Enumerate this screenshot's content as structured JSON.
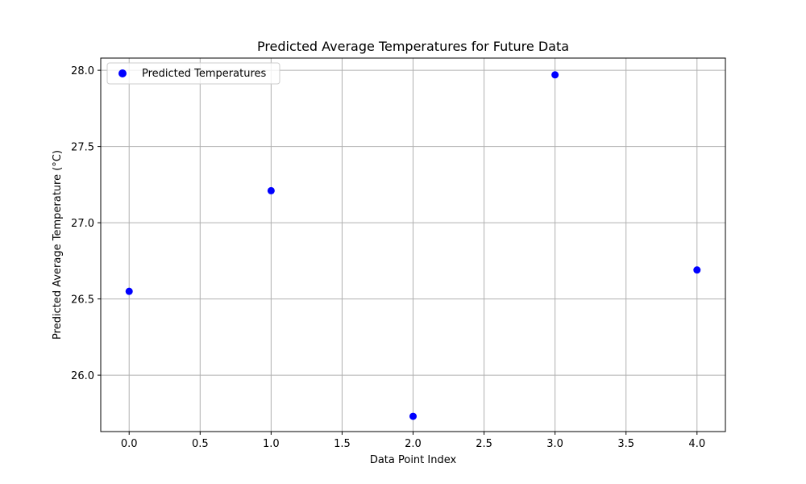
{
  "chart_data": {
    "type": "scatter",
    "title": "Predicted Average Temperatures for Future Data",
    "xlabel": "Data Point Index",
    "ylabel": "Predicted Average Temperature (°C)",
    "xlim": [
      -0.2,
      4.2
    ],
    "ylim": [
      25.63,
      28.08
    ],
    "xticks": [
      0.0,
      0.5,
      1.0,
      1.5,
      2.0,
      2.5,
      3.0,
      3.5,
      4.0
    ],
    "xtick_labels": [
      "0.0",
      "0.5",
      "1.0",
      "1.5",
      "2.0",
      "2.5",
      "3.0",
      "3.5",
      "4.0"
    ],
    "yticks": [
      26.0,
      26.5,
      27.0,
      27.5,
      28.0
    ],
    "ytick_labels": [
      "26.0",
      "26.5",
      "27.0",
      "27.5",
      "28.0"
    ],
    "grid": true,
    "legend_position": "top-left",
    "series": [
      {
        "name": "Predicted Temperatures",
        "color": "#0000ff",
        "x": [
          0,
          1,
          2,
          3,
          4
        ],
        "y": [
          26.55,
          27.21,
          25.73,
          27.97,
          26.69
        ]
      }
    ]
  }
}
